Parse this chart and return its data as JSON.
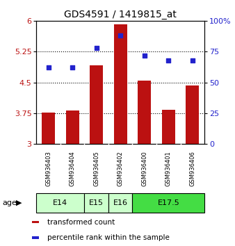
{
  "title": "GDS4591 / 1419815_at",
  "samples": [
    "GSM936403",
    "GSM936404",
    "GSM936405",
    "GSM936402",
    "GSM936400",
    "GSM936401",
    "GSM936406"
  ],
  "bar_values": [
    3.76,
    3.81,
    4.92,
    5.92,
    4.55,
    3.84,
    4.42
  ],
  "percentile_values": [
    62,
    62,
    78,
    88,
    72,
    68,
    68
  ],
  "bar_color": "#BB1111",
  "dot_color": "#2222CC",
  "ylim_left": [
    3,
    6
  ],
  "ylim_right": [
    0,
    100
  ],
  "yticks_left": [
    3,
    3.75,
    4.5,
    5.25,
    6
  ],
  "yticks_right": [
    0,
    25,
    50,
    75,
    100
  ],
  "ytick_labels_left": [
    "3",
    "3.75",
    "4.5",
    "5.25",
    "6"
  ],
  "ytick_labels_right": [
    "0",
    "25",
    "50",
    "75",
    "100%"
  ],
  "age_groups": [
    {
      "label": "E14",
      "samples": [
        "GSM936403",
        "GSM936404"
      ],
      "color": "#CCFFCC"
    },
    {
      "label": "E15",
      "samples": [
        "GSM936405"
      ],
      "color": "#CCFFCC"
    },
    {
      "label": "E16",
      "samples": [
        "GSM936402"
      ],
      "color": "#CCFFCC"
    },
    {
      "label": "E17.5",
      "samples": [
        "GSM936400",
        "GSM936401",
        "GSM936406"
      ],
      "color": "#44DD44"
    }
  ],
  "bar_bottom": 3,
  "legend_tc_label": "transformed count",
  "legend_pr_label": "percentile rank within the sample",
  "bg_color": "#FFFFFF",
  "sample_bg_color": "#C8C8C8",
  "title_fontsize": 10,
  "tick_fontsize": 8,
  "sample_fontsize": 6,
  "age_fontsize": 8,
  "legend_fontsize": 7.5
}
